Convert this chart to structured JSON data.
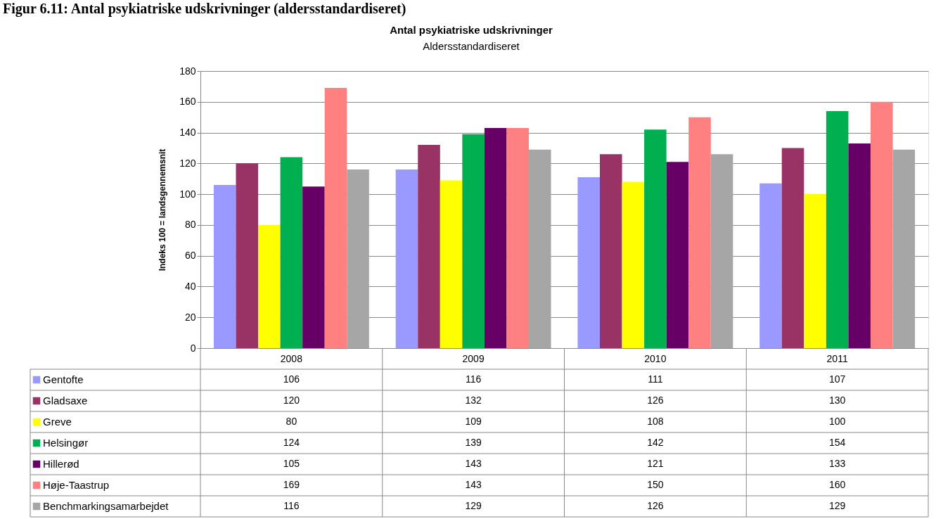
{
  "chart_data": {
    "type": "bar",
    "title": "Antal psykiatriske udskrivninger",
    "subtitle": "Aldersstandardiseret",
    "ylabel": "Indeks 100 = landsgennemsnit",
    "annotations": [
      "Figur 6.11: Antal psykiatriske udskrivninger (aldersstandardiseret)"
    ],
    "categories": [
      "2008",
      "2009",
      "2010",
      "2011"
    ],
    "series": [
      {
        "name": "Gentofte",
        "color": "#9999ff",
        "values": [
          106,
          116,
          111,
          107
        ]
      },
      {
        "name": "Gladsaxe",
        "color": "#993366",
        "values": [
          120,
          132,
          126,
          130
        ]
      },
      {
        "name": "Greve",
        "color": "#ffff00",
        "values": [
          80,
          109,
          108,
          100
        ]
      },
      {
        "name": "Helsingør",
        "color": "#00b050",
        "values": [
          124,
          139,
          142,
          154
        ]
      },
      {
        "name": "Hillerød",
        "color": "#660066",
        "values": [
          105,
          143,
          121,
          133
        ]
      },
      {
        "name": "Høje-Taastrup",
        "color": "#ff8080",
        "values": [
          169,
          143,
          150,
          160
        ]
      },
      {
        "name": "Benchmarkingsamarbejdet",
        "color": "#a6a6a6",
        "values": [
          116,
          129,
          126,
          129
        ]
      }
    ],
    "ylim": [
      0,
      180
    ],
    "yticks": [
      0,
      20,
      40,
      60,
      80,
      100,
      120,
      140,
      160,
      180
    ],
    "grid": "y",
    "legend": "bottom",
    "data_labels": true
  }
}
